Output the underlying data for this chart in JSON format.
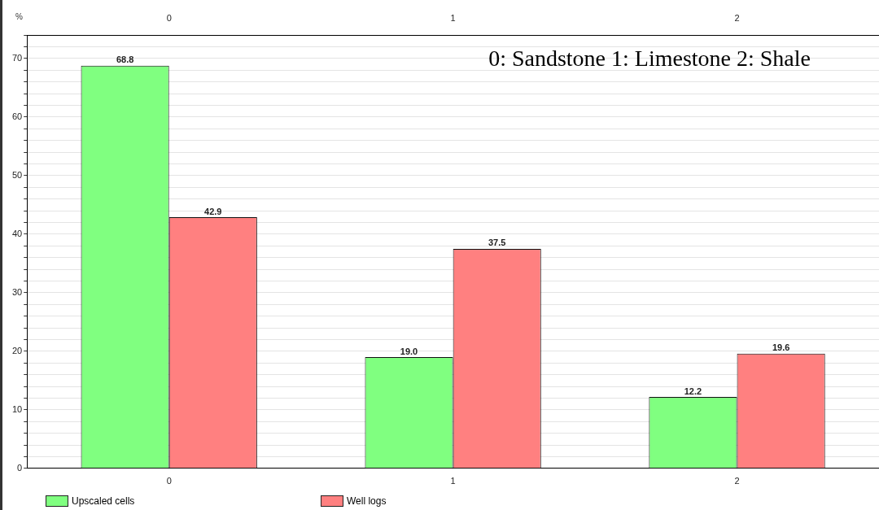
{
  "chart_data": {
    "type": "bar",
    "ylabel": "%",
    "categories": [
      "0",
      "1",
      "2"
    ],
    "series": [
      {
        "name": "Upscaled cells",
        "color": "#80ff80",
        "values": [
          68.8,
          19.0,
          12.2
        ],
        "value_labels": [
          "68.8",
          "19.0",
          "12.2"
        ]
      },
      {
        "name": "Well logs",
        "color": "#ff8080",
        "values": [
          42.9,
          37.5,
          19.6
        ],
        "value_labels": [
          "42.9",
          "37.5",
          "19.6"
        ]
      }
    ],
    "ylim": [
      0,
      74
    ],
    "yticks": [
      0,
      {
        "value": 2,
        "label": null
      },
      {
        "value": 4,
        "label": null
      },
      {
        "value": 6,
        "label": null
      },
      {
        "value": 8,
        "label": null
      },
      10,
      {
        "value": 12,
        "label": null
      },
      {
        "value": 14,
        "label": null
      },
      {
        "value": 16,
        "label": null
      },
      {
        "value": 18,
        "label": null
      },
      20,
      {
        "value": 22,
        "label": null
      },
      {
        "value": 24,
        "label": null
      },
      {
        "value": 26,
        "label": null
      },
      {
        "value": 28,
        "label": null
      },
      30,
      {
        "value": 32,
        "label": null
      },
      {
        "value": 34,
        "label": null
      },
      {
        "value": 36,
        "label": null
      },
      {
        "value": 38,
        "label": null
      },
      40,
      {
        "value": 42,
        "label": null
      },
      {
        "value": 44,
        "label": null
      },
      {
        "value": 46,
        "label": null
      },
      {
        "value": 48,
        "label": null
      },
      50,
      {
        "value": 52,
        "label": null
      },
      {
        "value": 54,
        "label": null
      },
      {
        "value": 56,
        "label": null
      },
      {
        "value": 58,
        "label": null
      },
      60,
      {
        "value": 62,
        "label": null
      },
      {
        "value": 64,
        "label": null
      },
      {
        "value": 66,
        "label": null
      },
      {
        "value": 68,
        "label": null
      },
      70,
      {
        "value": 72,
        "label": null
      },
      {
        "value": 74,
        "label": null
      }
    ],
    "grid": "y",
    "legend": "bottom left",
    "annotations": [
      "0: Sandstone 1: Limestone 2: Shale"
    ]
  }
}
